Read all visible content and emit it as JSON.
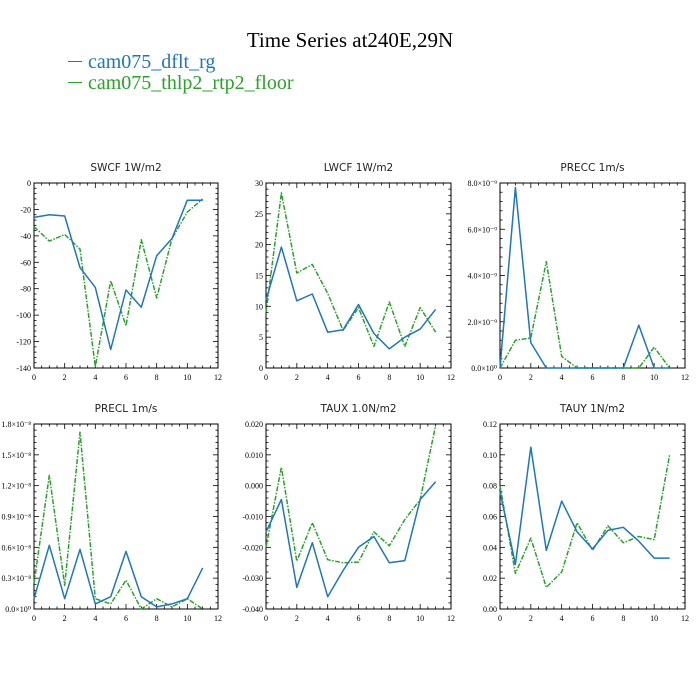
{
  "title": "Time Series at240E,29N",
  "legend": [
    {
      "label": "cam075_dflt_rg",
      "color": "#1f77b4"
    },
    {
      "label": "cam075_thlp2_rtp2_floor",
      "color": "#2ca02c"
    }
  ],
  "colors": {
    "series1": "#1f77b4",
    "series2": "#2ca02c"
  },
  "chart_data": [
    {
      "type": "line",
      "title": "SWCF   1W/m2",
      "xlim": [
        0,
        12
      ],
      "ylim": [
        -140,
        0
      ],
      "xticks": [
        "0",
        "2",
        "4",
        "6",
        "8",
        "10",
        "12"
      ],
      "yticks": [
        "0",
        "-20",
        "-40",
        "-60",
        "-80",
        "-100",
        "-120",
        "-140"
      ],
      "x": [
        0,
        1,
        2,
        3,
        4,
        5,
        6,
        7,
        8,
        9,
        10,
        11
      ],
      "series": [
        {
          "name": "cam075_dflt_rg",
          "values": [
            -26,
            -24,
            -25,
            -64,
            -79,
            -126,
            -81,
            -94,
            -55,
            -42,
            -13,
            -13
          ]
        },
        {
          "name": "cam075_thlp2_rtp2_floor",
          "values": [
            -33,
            -44,
            -39,
            -50,
            -139,
            -74,
            -108,
            -43,
            -87,
            -42,
            -22,
            -12
          ]
        }
      ]
    },
    {
      "type": "line",
      "title": "LWCF   1W/m2",
      "xlim": [
        0,
        12
      ],
      "ylim": [
        0,
        30
      ],
      "xticks": [
        "0",
        "2",
        "4",
        "6",
        "8",
        "10",
        "12"
      ],
      "yticks": [
        "0",
        "5",
        "10",
        "15",
        "20",
        "25",
        "30"
      ],
      "x": [
        0,
        1,
        2,
        3,
        4,
        5,
        6,
        7,
        8,
        9,
        10,
        11
      ],
      "series": [
        {
          "name": "cam075_dflt_rg",
          "values": [
            11,
            19.6,
            10.9,
            12,
            5.8,
            6.2,
            10.3,
            5.6,
            3.1,
            5,
            6.3,
            9.5
          ]
        },
        {
          "name": "cam075_thlp2_rtp2_floor",
          "values": [
            9,
            28.4,
            15.4,
            16.8,
            12.1,
            6.1,
            9.8,
            3.5,
            10.7,
            3.5,
            9.8,
            5.8
          ]
        }
      ]
    },
    {
      "type": "line",
      "title": "PRECC   1m/s",
      "xlim": [
        0,
        12
      ],
      "ylim": [
        0,
        8e-09
      ],
      "xticks": [
        "0",
        "2",
        "4",
        "6",
        "8",
        "10",
        "12"
      ],
      "yticks": [
        "0.0×10⁰",
        "2.0×10⁻⁹",
        "4.0×10⁻⁹",
        "6.0×10⁻⁹",
        "8.0×10⁻⁹"
      ],
      "x": [
        0,
        1,
        2,
        3,
        4,
        5,
        6,
        7,
        8,
        9,
        10,
        11
      ],
      "series": [
        {
          "name": "cam075_dflt_rg",
          "values": [
            0,
            7.8e-09,
            1.1e-09,
            0,
            0,
            0,
            0,
            0,
            0,
            1.85e-09,
            0,
            0
          ]
        },
        {
          "name": "cam075_thlp2_rtp2_floor",
          "values": [
            0,
            1.2e-09,
            1.3e-09,
            4.6e-09,
            5e-10,
            0,
            0,
            0,
            0,
            0,
            9e-10,
            0
          ]
        }
      ]
    },
    {
      "type": "line",
      "title": "PRECL   1m/s",
      "xlim": [
        0,
        12
      ],
      "ylim": [
        0,
        1.8e-08
      ],
      "xticks": [
        "0",
        "2",
        "4",
        "6",
        "8",
        "10",
        "12"
      ],
      "yticks": [
        "0.0×10⁰",
        "0.3×10⁻⁸",
        "0.6×10⁻⁸",
        "0.9×10⁻⁸",
        "1.2×10⁻⁸",
        "1.5×10⁻⁸",
        "1.8×10⁻⁸"
      ],
      "x": [
        0,
        1,
        2,
        3,
        4,
        5,
        6,
        7,
        8,
        9,
        10,
        11
      ],
      "series": [
        {
          "name": "cam075_dflt_rg",
          "values": [
            1e-09,
            6.2e-09,
            1e-09,
            5.8e-09,
            5e-10,
            1.2e-09,
            5.6e-09,
            1.2e-09,
            2e-10,
            5e-10,
            1e-09,
            4e-09
          ]
        },
        {
          "name": "cam075_thlp2_rtp2_floor",
          "values": [
            2.5e-09,
            1.3e-08,
            2.3e-09,
            1.72e-08,
            1e-09,
            5e-10,
            2.8e-09,
            0,
            1e-09,
            2e-10,
            1e-09,
            0
          ]
        }
      ]
    },
    {
      "type": "line",
      "title": "TAUX   1.0N/m2",
      "xlim": [
        0,
        12
      ],
      "ylim": [
        -0.04,
        0.02
      ],
      "xticks": [
        "0",
        "2",
        "4",
        "6",
        "8",
        "10",
        "12"
      ],
      "yticks": [
        "0.020",
        "0.010",
        "0.000",
        "-0.010",
        "-0.020",
        "-0.030",
        "-0.040"
      ],
      "x": [
        0,
        1,
        2,
        3,
        4,
        5,
        6,
        7,
        8,
        9,
        10,
        11
      ],
      "series": [
        {
          "name": "cam075_dflt_rg",
          "values": [
            -0.015,
            -0.0045,
            -0.033,
            -0.0185,
            -0.036,
            -0.0275,
            -0.02,
            -0.0165,
            -0.025,
            -0.0243,
            -0.0045,
            0.0013
          ]
        },
        {
          "name": "cam075_thlp2_rtp2_floor",
          "values": [
            -0.02,
            0.006,
            -0.0245,
            -0.012,
            -0.024,
            -0.025,
            -0.0248,
            -0.015,
            -0.0195,
            -0.011,
            -0.0045,
            0.0195
          ]
        }
      ]
    },
    {
      "type": "line",
      "title": "TAUY   1N/m2",
      "xlim": [
        0,
        12
      ],
      "ylim": [
        0,
        0.12
      ],
      "xticks": [
        "0",
        "2",
        "4",
        "6",
        "8",
        "10",
        "12"
      ],
      "yticks": [
        "0.12",
        "0.10",
        "0.08",
        "0.06",
        "0.04",
        "0.02",
        "0.00"
      ],
      "x": [
        0,
        1,
        2,
        3,
        4,
        5,
        6,
        7,
        8,
        9,
        10,
        11
      ],
      "series": [
        {
          "name": "cam075_dflt_rg",
          "values": [
            0.076,
            0.029,
            0.105,
            0.038,
            0.07,
            0.05,
            0.039,
            0.051,
            0.053,
            0.044,
            0.033,
            0.033
          ]
        },
        {
          "name": "cam075_thlp2_rtp2_floor",
          "values": [
            0.08,
            0.023,
            0.046,
            0.014,
            0.024,
            0.056,
            0.038,
            0.054,
            0.043,
            0.047,
            0.045,
            0.1
          ]
        }
      ]
    }
  ]
}
